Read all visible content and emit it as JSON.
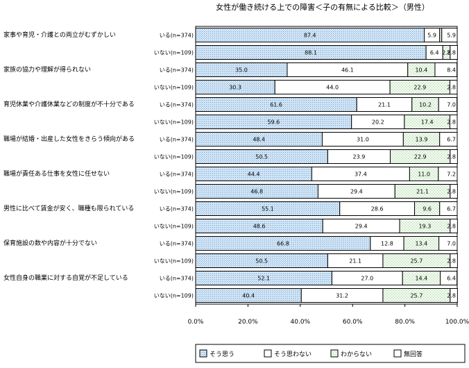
{
  "chart_data": {
    "type": "bar",
    "stacked": true,
    "orientation": "horizontal",
    "title": "女性が働き続ける上での障害＜子の有無による比較＞（男性）",
    "categories": [
      "家事や育児・介護との両立がむずかしい",
      "家族の協力や理解が得られない",
      "育児休業や介護休業などの制度が不十分である",
      "職場が結婚・出産した女性をきらう傾向がある",
      "職場が責任ある仕事を女性に任せない",
      "男性に比べて賃金が安く、職種も限られている",
      "保育施設の数や内容が十分でない",
      "女性自身の職業に対する自覚が不足している"
    ],
    "groups": [
      "いる(n=374)",
      "いない(n=109)"
    ],
    "series": [
      {
        "name": "そう思う",
        "color": "#cfe3f3",
        "values": [
          [
            87.4,
            88.1
          ],
          [
            35.0,
            30.3
          ],
          [
            61.6,
            59.6
          ],
          [
            48.4,
            50.5
          ],
          [
            44.4,
            46.8
          ],
          [
            55.1,
            48.6
          ],
          [
            66.8,
            50.5
          ],
          [
            52.1,
            40.4
          ]
        ]
      },
      {
        "name": "そう思わない",
        "color": "#ffffff",
        "values": [
          [
            5.9,
            6.4
          ],
          [
            46.1,
            44.0
          ],
          [
            21.1,
            20.2
          ],
          [
            31.0,
            23.9
          ],
          [
            37.4,
            29.4
          ],
          [
            28.6,
            29.4
          ],
          [
            12.8,
            21.1
          ],
          [
            27.0,
            31.2
          ]
        ]
      },
      {
        "name": "わからない",
        "color": "#e4f3e2",
        "values": [
          [
            0.8,
            2.8
          ],
          [
            10.4,
            22.9
          ],
          [
            10.2,
            17.4
          ],
          [
            13.9,
            22.9
          ],
          [
            11.0,
            21.1
          ],
          [
            9.6,
            19.3
          ],
          [
            13.4,
            25.7
          ],
          [
            14.4,
            25.7
          ]
        ]
      },
      {
        "name": "無回答",
        "color": "#ffffff",
        "values": [
          [
            5.9,
            2.8
          ],
          [
            8.4,
            2.8
          ],
          [
            7.0,
            2.8
          ],
          [
            6.7,
            2.8
          ],
          [
            7.2,
            2.8
          ],
          [
            6.7,
            2.8
          ],
          [
            7.0,
            2.8
          ],
          [
            6.4,
            2.8
          ]
        ]
      }
    ],
    "xlim": [
      0,
      100
    ],
    "xticks": [
      "0.0%",
      "20.0%",
      "40.0%",
      "60.0%",
      "80.0%",
      "100.0%"
    ],
    "legend_position": "bottom"
  }
}
